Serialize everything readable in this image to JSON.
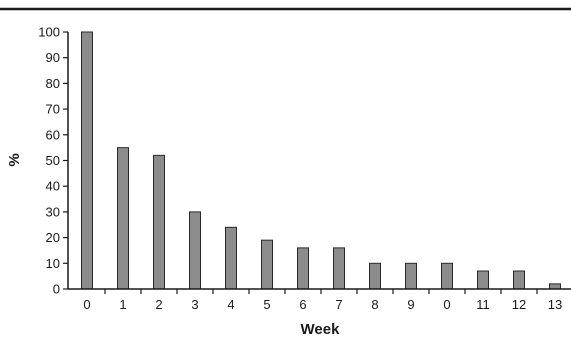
{
  "chart_data": {
    "type": "bar",
    "title": "",
    "xlabel": "Week",
    "ylabel": "%",
    "categories": [
      "0",
      "1",
      "2",
      "3",
      "4",
      "5",
      "6",
      "7",
      "8",
      "9",
      "0",
      "11",
      "12",
      "13"
    ],
    "values": [
      100,
      55,
      52,
      30,
      24,
      19,
      16,
      16,
      10,
      10,
      10,
      7,
      7,
      2
    ],
    "ylim": [
      0,
      100
    ],
    "yticks": [
      0,
      10,
      20,
      30,
      40,
      50,
      60,
      70,
      80,
      90,
      100
    ],
    "grid": false,
    "colors": {
      "bar_fill": "#8c8c8c",
      "bar_stroke": "#2a2a2a",
      "axis": "#1a1a1a",
      "top_rule": "#1a1a1a"
    }
  }
}
